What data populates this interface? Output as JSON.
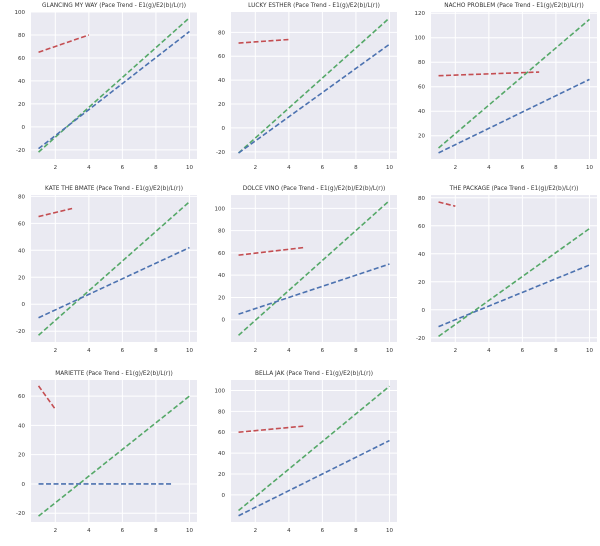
{
  "chart_data": [
    {
      "type": "line",
      "title": "GLANCING MY WAY (Pace Trend - E1(g)/E2(b)/L(r))",
      "xlim": [
        0.55,
        10.45
      ],
      "ylim": [
        -28,
        100
      ],
      "xticks": [
        2,
        4,
        6,
        8,
        10
      ],
      "yticks": [
        -20,
        0,
        20,
        40,
        60,
        80,
        100
      ],
      "series": [
        {
          "name": "E1",
          "color": "#55a868",
          "x": [
            1,
            10
          ],
          "y": [
            -22,
            95
          ]
        },
        {
          "name": "E2",
          "color": "#4c72b0",
          "x": [
            1,
            10
          ],
          "y": [
            -19,
            83
          ]
        },
        {
          "name": "L",
          "color": "#c44e52",
          "x": [
            1,
            4
          ],
          "y": [
            65,
            80
          ]
        }
      ]
    },
    {
      "type": "line",
      "title": "LUCKY ESTHER (Pace Trend - E1(g)/E2(b)/L(r))",
      "xlim": [
        0.55,
        10.45
      ],
      "ylim": [
        -26,
        97
      ],
      "xticks": [
        2,
        4,
        6,
        8,
        10
      ],
      "yticks": [
        -20,
        0,
        20,
        40,
        60,
        80
      ],
      "series": [
        {
          "name": "E1",
          "color": "#55a868",
          "x": [
            1,
            10
          ],
          "y": [
            -21,
            92
          ]
        },
        {
          "name": "E2",
          "color": "#4c72b0",
          "x": [
            1,
            10
          ],
          "y": [
            -21,
            70
          ]
        },
        {
          "name": "L",
          "color": "#c44e52",
          "x": [
            1,
            4
          ],
          "y": [
            71,
            74
          ]
        }
      ]
    },
    {
      "type": "line",
      "title": "NACHO PROBLEM (Pace Trend - E1(g)/E2(b)/L(r))",
      "xlim": [
        0.55,
        10.45
      ],
      "ylim": [
        1,
        121
      ],
      "xticks": [
        2,
        4,
        6,
        8,
        10
      ],
      "yticks": [
        20,
        40,
        60,
        80,
        100,
        120
      ],
      "series": [
        {
          "name": "E1",
          "color": "#55a868",
          "x": [
            1,
            10
          ],
          "y": [
            10,
            115
          ]
        },
        {
          "name": "E2",
          "color": "#4c72b0",
          "x": [
            1,
            10
          ],
          "y": [
            6,
            66
          ]
        },
        {
          "name": "L",
          "color": "#c44e52",
          "x": [
            1,
            7
          ],
          "y": [
            69,
            72
          ]
        }
      ]
    },
    {
      "type": "line",
      "title": "KATE THE BMATE (Pace Trend - E1(g)/E2(b)/L(r))",
      "xlim": [
        0.55,
        10.45
      ],
      "ylim": [
        -28,
        81
      ],
      "xticks": [
        2,
        4,
        6,
        8,
        10
      ],
      "yticks": [
        -20,
        0,
        20,
        40,
        60,
        80
      ],
      "series": [
        {
          "name": "E1",
          "color": "#55a868",
          "x": [
            1,
            10
          ],
          "y": [
            -23,
            76
          ]
        },
        {
          "name": "E2",
          "color": "#4c72b0",
          "x": [
            1,
            10
          ],
          "y": [
            -10,
            42
          ]
        },
        {
          "name": "L",
          "color": "#c44e52",
          "x": [
            1,
            3
          ],
          "y": [
            65,
            71
          ]
        }
      ]
    },
    {
      "type": "line",
      "title": "DOLCE VINO (Pace Trend - E1(g)/E2(b)/E2(b)/L(r))",
      "xlim": [
        0.55,
        10.45
      ],
      "ylim": [
        -20,
        112
      ],
      "xticks": [
        2,
        4,
        6,
        8,
        10
      ],
      "yticks": [
        0,
        20,
        40,
        60,
        80,
        100
      ],
      "series": [
        {
          "name": "E1",
          "color": "#55a868",
          "x": [
            1,
            10
          ],
          "y": [
            -14,
            107
          ]
        },
        {
          "name": "E2",
          "color": "#4c72b0",
          "x": [
            1,
            10
          ],
          "y": [
            5,
            50
          ]
        },
        {
          "name": "L",
          "color": "#c44e52",
          "x": [
            1,
            5
          ],
          "y": [
            58,
            65
          ]
        }
      ]
    },
    {
      "type": "line",
      "title": "THE PACKAGE (Pace Trend - E1(g)/E2(b)/L(r))",
      "xlim": [
        0.55,
        10.45
      ],
      "ylim": [
        -23,
        82
      ],
      "xticks": [
        2,
        4,
        6,
        8,
        10
      ],
      "yticks": [
        -20,
        0,
        20,
        40,
        60,
        80
      ],
      "series": [
        {
          "name": "E1",
          "color": "#55a868",
          "x": [
            1,
            10
          ],
          "y": [
            -19,
            58
          ]
        },
        {
          "name": "E2",
          "color": "#4c72b0",
          "x": [
            1,
            10
          ],
          "y": [
            -12,
            32
          ]
        },
        {
          "name": "L",
          "color": "#c44e52",
          "x": [
            1,
            2
          ],
          "y": [
            77,
            74
          ]
        }
      ]
    },
    {
      "type": "line",
      "title": "MARIETTE (Pace Trend - E1(g)/E2(b)/L(r))",
      "xlim": [
        0.55,
        10.45
      ],
      "ylim": [
        -26,
        71
      ],
      "xticks": [
        2,
        4,
        6,
        8,
        10
      ],
      "yticks": [
        -20,
        0,
        20,
        40,
        60
      ],
      "series": [
        {
          "name": "E1",
          "color": "#55a868",
          "x": [
            1,
            10
          ],
          "y": [
            -22,
            60
          ]
        },
        {
          "name": "E2",
          "color": "#4c72b0",
          "x": [
            1,
            9
          ],
          "y": [
            0,
            0
          ]
        },
        {
          "name": "L",
          "color": "#c44e52",
          "x": [
            1,
            2
          ],
          "y": [
            67,
            51
          ]
        }
      ]
    },
    {
      "type": "line",
      "title": "BELLA JAK (Pace Trend - E1(g)/E2(b)/L(r))",
      "xlim": [
        0.55,
        10.45
      ],
      "ylim": [
        -26,
        110
      ],
      "xticks": [
        2,
        4,
        6,
        8,
        10
      ],
      "yticks": [
        0,
        20,
        40,
        60,
        80,
        100
      ],
      "series": [
        {
          "name": "E1",
          "color": "#55a868",
          "x": [
            1,
            10
          ],
          "y": [
            -15,
            104
          ]
        },
        {
          "name": "E2",
          "color": "#4c72b0",
          "x": [
            1,
            10
          ],
          "y": [
            -20,
            52
          ]
        },
        {
          "name": "L",
          "color": "#c44e52",
          "x": [
            1,
            5
          ],
          "y": [
            60,
            66
          ]
        }
      ]
    }
  ]
}
